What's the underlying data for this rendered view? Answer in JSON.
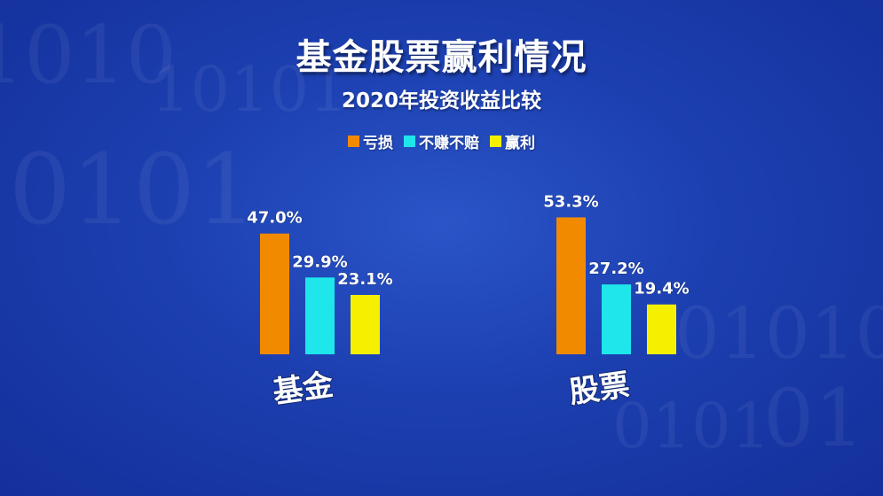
{
  "title": "基金股票赢利情况",
  "subtitle": "2020年投资收益比较",
  "colors": {
    "loss": "#f28a00",
    "breakeven": "#1ee6ea",
    "profit": "#f5f000"
  },
  "chart_data": {
    "type": "bar",
    "categories": [
      "基金",
      "股票"
    ],
    "series": [
      {
        "name": "亏损",
        "values": [
          47.0,
          53.3
        ]
      },
      {
        "name": "不赚不赔",
        "values": [
          29.9,
          27.2
        ]
      },
      {
        "name": "赢利",
        "values": [
          23.1,
          19.4
        ]
      }
    ],
    "value_labels": [
      [
        "47.0%",
        "29.9%",
        "23.1%"
      ],
      [
        "53.3%",
        "27.2%",
        "19.4%"
      ]
    ],
    "legend_position": "top-center",
    "grid": false
  }
}
